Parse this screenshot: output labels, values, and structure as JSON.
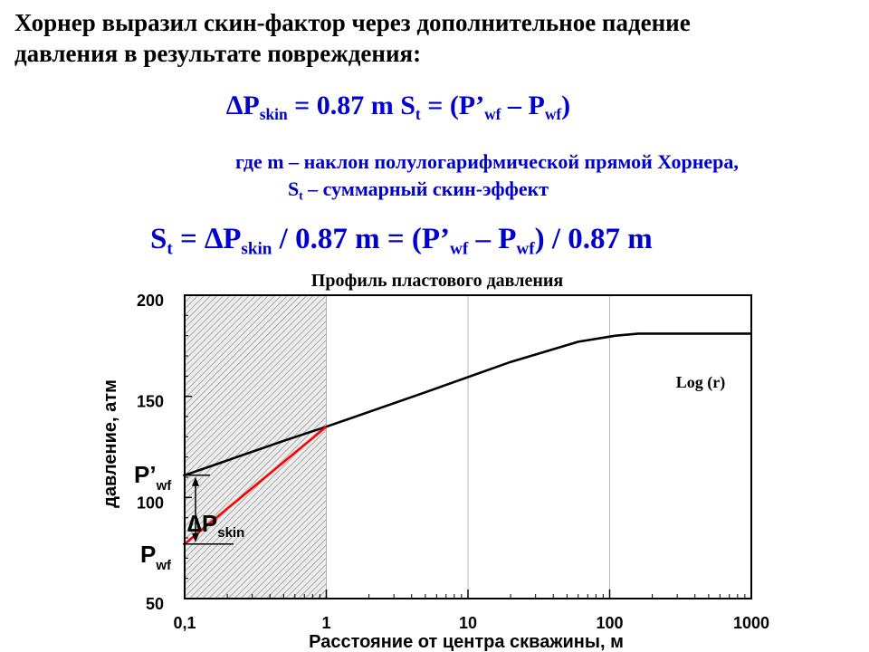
{
  "intro": {
    "line1": "Хорнер выразил скин-фактор через дополнительное падение",
    "line2": "давления в результате повреждения:"
  },
  "formula1": {
    "lhs": "∆P",
    "lhs_sub": "skin",
    "mid": " = 0.87 m S",
    "mid_sub": "t",
    "eq": " = (P’",
    "p1_sub": "wf",
    "minus": " – P",
    "p2_sub": "wf",
    "close": ")"
  },
  "where": {
    "line1": "где   m – наклон полулогарифмической прямой Хорнера,",
    "line2_s": "S",
    "line2_sub": "t",
    "line2_rest": " – суммарный скин-эффект"
  },
  "formula2": {
    "s": "S",
    "s_sub": "t",
    "eq1": " = ∆P",
    "skin_sub": "skin",
    "div1": " / 0.87 m = (P’",
    "p1_sub": "wf",
    "minus": " – P",
    "p2_sub": "wf",
    "div2": ") / 0.87 m"
  },
  "colors": {
    "formula": "#0000cc",
    "skin_line": "#ff0000",
    "main_line": "#000000",
    "hatch": "#999999"
  },
  "chart_data": {
    "type": "line",
    "title": "Профиль пластового давления",
    "xlabel": "Расстояние от центра скважины, м",
    "ylabel": "давление, атм",
    "x_scale": "log",
    "xlim": [
      0.1,
      1000
    ],
    "ylim": [
      50,
      200
    ],
    "x_ticks": [
      "0,1",
      "1",
      "10",
      "100",
      "1000"
    ],
    "y_ticks": [
      "50",
      "100",
      "150",
      "200"
    ],
    "grid": "vertical at decades",
    "hatched_region": [
      0.1,
      1
    ],
    "series": [
      {
        "type": "line",
        "color": "#000000",
        "points": [
          [
            0.1,
            111
          ],
          [
            0.5,
            128
          ],
          [
            1,
            135
          ],
          [
            5,
            152
          ],
          [
            20,
            167
          ],
          [
            60,
            177
          ],
          [
            110,
            180
          ],
          [
            160,
            181
          ],
          [
            1000,
            181
          ]
        ]
      },
      {
        "type": "line",
        "color": "#ff0000",
        "points": [
          [
            0.1,
            77
          ],
          [
            1,
            135
          ]
        ]
      }
    ],
    "annotations": {
      "log_label": "Log (r)",
      "pwf_prime": "P’",
      "pwf_prime_sub": "wf",
      "pwf": "P",
      "pwf_sub": "wf",
      "dp": "∆P",
      "dp_sub": "skin",
      "pwf_prime_value": 111,
      "pwf_value": 77
    }
  }
}
